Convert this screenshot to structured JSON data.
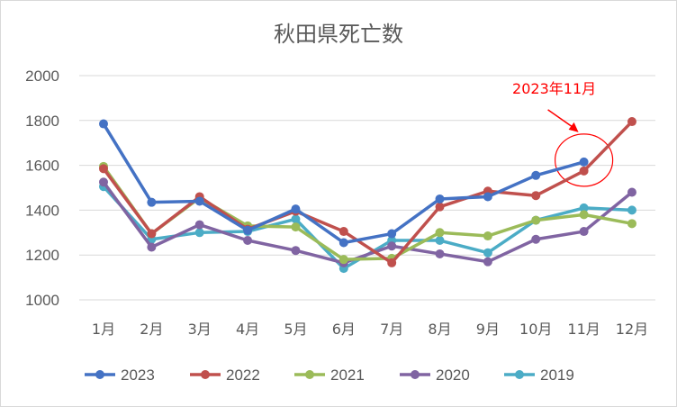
{
  "chart_data": {
    "type": "line",
    "title": "秋田県死亡数",
    "xlabel": "",
    "ylabel": "",
    "ylim": [
      1000,
      2000
    ],
    "yticks": [
      1000,
      1200,
      1400,
      1600,
      1800,
      2000
    ],
    "categories": [
      "1月",
      "2月",
      "3月",
      "4月",
      "5月",
      "6月",
      "7月",
      "8月",
      "9月",
      "10月",
      "11月",
      "12月"
    ],
    "legend_position": "bottom",
    "series": [
      {
        "name": "2023",
        "color": "#4472c4",
        "values": [
          1785,
          1435,
          1440,
          1310,
          1405,
          1255,
          1295,
          1450,
          1460,
          1555,
          1615,
          null
        ]
      },
      {
        "name": "2022",
        "color": "#c0504d",
        "values": [
          1585,
          1295,
          1460,
          1315,
          1395,
          1305,
          1165,
          1415,
          1485,
          1465,
          1575,
          1795
        ]
      },
      {
        "name": "2021",
        "color": "#9bbb59",
        "values": [
          1595,
          1295,
          1455,
          1330,
          1325,
          1180,
          1185,
          1300,
          1285,
          1355,
          1380,
          1340
        ]
      },
      {
        "name": "2020",
        "color": "#8064a2",
        "values": [
          1525,
          1235,
          1335,
          1265,
          1220,
          1165,
          1240,
          1205,
          1170,
          1270,
          1305,
          1480
        ]
      },
      {
        "name": "2019",
        "color": "#4bacc6",
        "values": [
          1505,
          1270,
          1300,
          1305,
          1360,
          1140,
          1265,
          1265,
          1210,
          1355,
          1410,
          1400
        ]
      }
    ],
    "annotation": {
      "text": "2023年11月",
      "series": "2023",
      "category_index": 10
    }
  }
}
